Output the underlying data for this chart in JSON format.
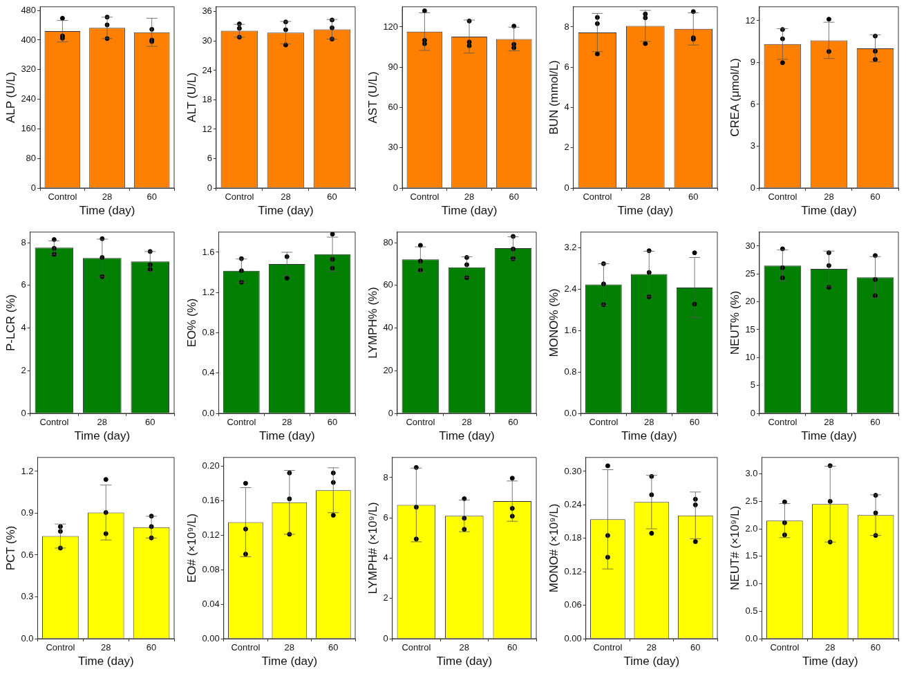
{
  "chart_data": [
    {
      "type": "bar",
      "categories": [
        "Control",
        "28",
        "60"
      ],
      "xlabel": "Time (day)",
      "ylabel": "ALP (U/L)",
      "ylim": [
        0,
        490
      ],
      "yticks": [
        0,
        80,
        160,
        240,
        320,
        400,
        480
      ],
      "series": [
        {
          "color": "#ff8000",
          "values": [
            424,
            433,
            421
          ],
          "errors": [
            29,
            29,
            38
          ]
        },
        {
          "type": "scatter",
          "color": "#000000",
          "marker": "circle",
          "x": [
            "Control",
            "Control",
            "Control",
            "28",
            "28",
            "28",
            "60",
            "60",
            "60"
          ],
          "values": [
            459,
            411,
            405,
            462,
            441,
            404,
            429,
            400,
            396
          ]
        }
      ]
    },
    {
      "type": "bar",
      "categories": [
        "Control",
        "28",
        "60"
      ],
      "xlabel": "Time (day)",
      "ylabel": "ALT (U/L)",
      "ylim": [
        0,
        37
      ],
      "yticks": [
        0,
        6,
        12,
        18,
        24,
        30,
        36
      ],
      "series": [
        {
          "color": "#ff8000",
          "values": [
            32.1,
            31.7,
            32.4
          ],
          "errors": [
            1.3,
            2.3,
            2.0
          ]
        },
        {
          "type": "scatter",
          "color": "#000000",
          "marker": "circle",
          "x": [
            "Control",
            "Control",
            "Control",
            "28",
            "28",
            "28",
            "60",
            "60",
            "60"
          ],
          "values": [
            33.5,
            32.6,
            30.8,
            33.9,
            32.3,
            29.2,
            34.3,
            32.7,
            30.4
          ]
        }
      ]
    },
    {
      "type": "bar",
      "categories": [
        "Control",
        "28",
        "60"
      ],
      "xlabel": "Time (day)",
      "ylabel": "AST (U/L)",
      "ylim": [
        0,
        135
      ],
      "yticks": [
        0,
        30,
        60,
        90,
        120
      ],
      "series": [
        {
          "color": "#ff8000",
          "values": [
            116.5,
            112.8,
            111
          ],
          "errors": [
            14,
            12.3,
            8.8
          ]
        },
        {
          "type": "scatter",
          "color": "#000000",
          "marker": "circle",
          "x": [
            "Control",
            "Control",
            "Control",
            "28",
            "28",
            "28",
            "60",
            "60",
            "60"
          ],
          "values": [
            132,
            110,
            107.5,
            124.4,
            108.7,
            106,
            120.6,
            107,
            104.5
          ]
        }
      ]
    },
    {
      "type": "bar",
      "categories": [
        "Control",
        "28",
        "60"
      ],
      "xlabel": "Time (day)",
      "ylabel": "BUN (mmol/L)",
      "ylim": [
        0,
        9
      ],
      "yticks": [
        0,
        2,
        4,
        6,
        8
      ],
      "series": [
        {
          "color": "#ff8000",
          "values": [
            7.72,
            8.05,
            7.9
          ],
          "errors": [
            0.95,
            0.77,
            0.8
          ]
        },
        {
          "type": "scatter",
          "color": "#000000",
          "marker": "circle",
          "x": [
            "Control",
            "Control",
            "Control",
            "28",
            "28",
            "28",
            "60",
            "60",
            "60"
          ],
          "values": [
            8.47,
            8.16,
            6.66,
            8.64,
            8.45,
            7.17,
            8.76,
            7.46,
            7.39
          ]
        }
      ]
    },
    {
      "type": "bar",
      "categories": [
        "Control",
        "28",
        "60"
      ],
      "xlabel": "Time (day)",
      "ylabel": "CREA (μmol/L)",
      "ylim": [
        0,
        13
      ],
      "yticks": [
        0,
        3,
        6,
        9,
        12
      ],
      "series": [
        {
          "color": "#ff8000",
          "values": [
            10.33,
            10.59,
            10.02
          ],
          "errors": [
            1.1,
            1.3,
            0.97
          ]
        },
        {
          "type": "scatter",
          "color": "#000000",
          "marker": "circle",
          "x": [
            "Control",
            "Control",
            "Control",
            "28",
            "28",
            "60",
            "60",
            "60"
          ],
          "values": [
            11.37,
            10.7,
            8.99,
            12.11,
            9.79,
            10.9,
            9.81,
            9.22
          ]
        }
      ]
    },
    {
      "type": "bar",
      "categories": [
        "Control",
        "28",
        "60"
      ],
      "xlabel": "Time (day)",
      "ylabel": "P-LCR (%)",
      "ylim": [
        0,
        8.5
      ],
      "yticks": [
        0,
        2,
        4,
        6,
        8
      ],
      "series": [
        {
          "color": "#007f00",
          "values": [
            7.77,
            7.29,
            7.12
          ],
          "errors": [
            0.32,
            0.88,
            0.47
          ]
        },
        {
          "type": "scatter",
          "color": "#000000",
          "marker": "circle",
          "x": [
            "Control",
            "Control",
            "Control",
            "28",
            "28",
            "28",
            "60",
            "60",
            "60"
          ],
          "values": [
            8.15,
            7.74,
            7.46,
            8.19,
            7.31,
            6.41,
            7.59,
            6.97,
            6.75
          ]
        }
      ]
    },
    {
      "type": "bar",
      "categories": [
        "Control",
        "28",
        "60"
      ],
      "xlabel": "Time (day)",
      "ylabel": "EO% (%)",
      "ylim": [
        0,
        1.8
      ],
      "yticks": [
        {
          "value": 0,
          "label": "0.0"
        },
        0.4,
        0.8,
        1.2,
        1.6
      ],
      "series": [
        {
          "color": "#007f00",
          "values": [
            1.416,
            1.483,
            1.58
          ],
          "errors": [
            0.117,
            0.117,
            0.17
          ]
        },
        {
          "type": "scatter",
          "color": "#000000",
          "marker": "circle",
          "x": [
            "Control",
            "Control",
            "Control",
            "28",
            "28",
            "60",
            "60",
            "60"
          ],
          "values": [
            1.536,
            1.416,
            1.302,
            1.556,
            1.343,
            1.78,
            1.53,
            1.442
          ]
        }
      ]
    },
    {
      "type": "bar",
      "categories": [
        "Control",
        "28",
        "60"
      ],
      "xlabel": "Time (day)",
      "ylabel": "LYMPH% (%)",
      "ylim": [
        0,
        85
      ],
      "yticks": [
        0,
        20,
        40,
        60,
        80
      ],
      "series": [
        {
          "color": "#007f00",
          "values": [
            72.2,
            68.5,
            77.5
          ],
          "errors": [
            5.9,
            4.9,
            5.3
          ]
        },
        {
          "type": "scatter",
          "color": "#000000",
          "marker": "circle",
          "x": [
            "Control",
            "Control",
            "Control",
            "28",
            "28",
            "28",
            "60",
            "60",
            "60"
          ],
          "values": [
            78.8,
            71.4,
            67.1,
            73.1,
            69.7,
            63.6,
            83,
            77.1,
            72.5
          ]
        }
      ]
    },
    {
      "type": "bar",
      "categories": [
        "Control",
        "28",
        "60"
      ],
      "xlabel": "Time (day)",
      "ylabel": "MONO% (%)",
      "ylim": [
        0,
        3.5
      ],
      "yticks": [
        {
          "value": 0,
          "label": "0.0"
        },
        0.8,
        1.6,
        2.4,
        3.2
      ],
      "series": [
        {
          "color": "#007f00",
          "values": [
            2.49,
            2.69,
            2.43
          ],
          "errors": [
            0.4,
            0.44,
            0.58
          ]
        },
        {
          "type": "scatter",
          "color": "#000000",
          "marker": "circle",
          "x": [
            "Control",
            "Control",
            "Control",
            "28",
            "28",
            "28",
            "60",
            "60"
          ],
          "values": [
            2.89,
            2.5,
            2.1,
            3.14,
            2.72,
            2.25,
            3.1,
            2.11
          ]
        }
      ]
    },
    {
      "type": "bar",
      "categories": [
        "Control",
        "28",
        "60"
      ],
      "xlabel": "Time (day)",
      "ylabel": "NEUT% (%)",
      "ylim": [
        0,
        32.5
      ],
      "yticks": [
        0,
        5,
        10,
        15,
        20,
        25,
        30
      ],
      "series": [
        {
          "color": "#007f00",
          "values": [
            26.5,
            25.9,
            24.4
          ],
          "errors": [
            2.8,
            3.2,
            3.7
          ]
        },
        {
          "type": "scatter",
          "color": "#000000",
          "marker": "circle",
          "x": [
            "Control",
            "Control",
            "Control",
            "28",
            "28",
            "28",
            "60",
            "60",
            "60"
          ],
          "values": [
            29.5,
            26.1,
            24.3,
            28.8,
            26.5,
            22.6,
            28.3,
            24,
            21.1
          ]
        }
      ]
    },
    {
      "type": "bar",
      "categories": [
        "Control",
        "28",
        "60"
      ],
      "xlabel": "Time (day)",
      "ylabel": "PCT (%)",
      "ylim": [
        0,
        1.3
      ],
      "yticks": [
        {
          "value": 0,
          "label": "0.0"
        },
        0.3,
        0.6,
        0.9,
        1.2
      ],
      "series": [
        {
          "color": "#ffff00",
          "values": [
            0.736,
            0.905,
            0.8
          ],
          "errors": [
            0.086,
            0.197,
            0.078
          ]
        },
        {
          "type": "scatter",
          "color": "#000000",
          "marker": "circle",
          "x": [
            "Control",
            "Control",
            "Control",
            "28",
            "28",
            "28",
            "60",
            "60",
            "60"
          ],
          "values": [
            0.804,
            0.77,
            0.65,
            1.142,
            0.905,
            0.753,
            0.879,
            0.804,
            0.723
          ]
        }
      ]
    },
    {
      "type": "bar",
      "categories": [
        "Control",
        "28",
        "60"
      ],
      "xlabel": "Time (day)",
      "ylabel": "EO# (×10⁹/L)",
      "ylim": [
        0,
        0.21
      ],
      "yticks": [
        {
          "value": 0,
          "label": "0.00"
        },
        0.04,
        0.08,
        0.12,
        0.16,
        {
          "value": 0.2,
          "label": "0.20"
        }
      ],
      "series": [
        {
          "color": "#ffff00",
          "values": [
            0.135,
            0.158,
            0.172
          ],
          "errors": [
            0.04,
            0.037,
            0.026
          ]
        },
        {
          "type": "scatter",
          "color": "#000000",
          "marker": "circle",
          "x": [
            "Control",
            "Control",
            "Control",
            "28",
            "28",
            "28",
            "60",
            "60",
            "60"
          ],
          "values": [
            0.18,
            0.127,
            0.098,
            0.192,
            0.162,
            0.121,
            0.192,
            0.181,
            0.143
          ]
        }
      ]
    },
    {
      "type": "bar",
      "categories": [
        "Control",
        "28",
        "60"
      ],
      "xlabel": "Time (day)",
      "ylabel": "LYMPH# (×10⁹/L)",
      "ylim": [
        0,
        9
      ],
      "yticks": [
        0,
        2,
        4,
        6,
        8
      ],
      "series": [
        {
          "color": "#ffff00",
          "values": [
            6.64,
            6.1,
            6.83
          ],
          "errors": [
            1.83,
            0.79,
            1
          ]
        },
        {
          "type": "scatter",
          "color": "#000000",
          "marker": "circle",
          "x": [
            "Control",
            "Control",
            "Control",
            "28",
            "28",
            "28",
            "60",
            "60",
            "60"
          ],
          "values": [
            8.5,
            6.53,
            4.95,
            6.95,
            5.98,
            5.43,
            7.97,
            6.47,
            6.08
          ]
        }
      ]
    },
    {
      "type": "bar",
      "categories": [
        "Control",
        "28",
        "60"
      ],
      "xlabel": "Time (day)",
      "ylabel": "MONO# (×10⁹/L)",
      "ylim": [
        0,
        0.325
      ],
      "yticks": [
        {
          "value": 0,
          "label": "0.00"
        },
        0.06,
        0.12,
        0.18,
        0.24,
        {
          "value": 0.3,
          "label": "0.30"
        }
      ],
      "series": [
        {
          "color": "#ffff00",
          "values": [
            0.214,
            0.245,
            0.221
          ],
          "errors": [
            0.089,
            0.048,
            0.042
          ]
        },
        {
          "type": "scatter",
          "color": "#000000",
          "marker": "circle",
          "x": [
            "Control",
            "Control",
            "Control",
            "28",
            "28",
            "28",
            "60",
            "60",
            "60"
          ],
          "values": [
            0.31,
            0.185,
            0.146,
            0.291,
            0.258,
            0.189,
            0.25,
            0.24,
            0.174
          ]
        }
      ]
    },
    {
      "type": "bar",
      "categories": [
        "Control",
        "28",
        "60"
      ],
      "xlabel": "Time (day)",
      "ylabel": "NEUT# (×10⁹/L)",
      "ylim": [
        0,
        3.3
      ],
      "yticks": [
        {
          "value": 0,
          "label": "0.0"
        },
        0.5,
        {
          "value": 1,
          "label": "1.0"
        },
        1.5,
        {
          "value": 2,
          "label": "2.0"
        },
        2.5,
        {
          "value": 3,
          "label": "3.0"
        }
      ],
      "series": [
        {
          "color": "#ffff00",
          "values": [
            2.15,
            2.45,
            2.25
          ],
          "errors": [
            0.31,
            0.69,
            0.37
          ]
        },
        {
          "type": "scatter",
          "color": "#000000",
          "marker": "circle",
          "x": [
            "Control",
            "Control",
            "Control",
            "28",
            "28",
            "28",
            "60",
            "60",
            "60"
          ],
          "values": [
            2.49,
            2.11,
            1.89,
            3.15,
            2.5,
            1.76,
            2.61,
            2.29,
            1.88
          ]
        }
      ]
    }
  ]
}
